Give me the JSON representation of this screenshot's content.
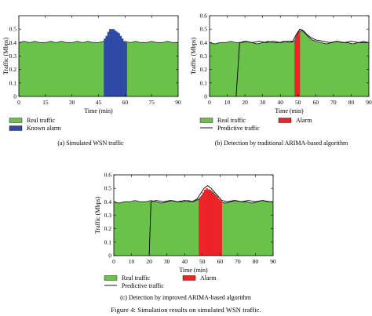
{
  "figure_caption": "Figure 4: Simulation results on simulated WSN traffic.",
  "colors": {
    "real": "#6ac24a",
    "known_alarm": "#2e4aa6",
    "alarm": "#ec2327",
    "predictive": "#000000",
    "frame": "#000000"
  },
  "chart_data": [
    {
      "id": "a",
      "type": "area",
      "caption": "(a)  Simulated WSN traffic",
      "xlabel": "Time (min)",
      "ylabel": "Traffic (Mbps)",
      "xlim": [
        0,
        90
      ],
      "ylim": [
        0,
        0.6
      ],
      "xticks": [
        "0",
        "15",
        "30",
        "45",
        "60",
        "75",
        "90"
      ],
      "yticks": [
        "0",
        "0.1",
        "0.2",
        "0.3",
        "0.4",
        "0.5"
      ],
      "series": [
        {
          "name": "Real traffic",
          "x": [
            0,
            3,
            6,
            9,
            12,
            15,
            18,
            21,
            24,
            27,
            30,
            33,
            36,
            39,
            42,
            45,
            48,
            50,
            52,
            54,
            56,
            58,
            60,
            63,
            66,
            69,
            72,
            75,
            78,
            81,
            84,
            87,
            90
          ],
          "y": [
            0.4,
            0.41,
            0.4,
            0.41,
            0.4,
            0.4,
            0.41,
            0.4,
            0.41,
            0.4,
            0.4,
            0.41,
            0.4,
            0.41,
            0.4,
            0.4,
            0.41,
            0.4,
            0.4,
            0.4,
            0.4,
            0.4,
            0.41,
            0.4,
            0.41,
            0.4,
            0.4,
            0.41,
            0.4,
            0.4,
            0.41,
            0.4,
            0.4
          ]
        },
        {
          "name": "Known alarm",
          "x": [
            48,
            49,
            50,
            51,
            52,
            53,
            54,
            55,
            56,
            57,
            58,
            59,
            60
          ],
          "y": [
            0.43,
            0.45,
            0.48,
            0.5,
            0.5,
            0.5,
            0.49,
            0.48,
            0.47,
            0.45,
            0.43,
            0.41,
            0.4
          ]
        }
      ]
    },
    {
      "id": "b",
      "type": "area",
      "caption": "(b)  Detection by traditional ARIMA-based algorithm",
      "xlabel": "Time (min)",
      "ylabel": "Traffic (Mbps)",
      "xlim": [
        0,
        90
      ],
      "ylim": [
        0,
        0.6
      ],
      "xticks": [
        "0",
        "10",
        "20",
        "30",
        "40",
        "50",
        "60",
        "70",
        "80",
        "90"
      ],
      "yticks": [
        "0",
        "0.1",
        "0.2",
        "0.3",
        "0.4",
        "0.5",
        "0.6"
      ],
      "series": [
        {
          "name": "Real traffic",
          "x": [
            0,
            3,
            6,
            9,
            12,
            15,
            18,
            21,
            24,
            27,
            30,
            33,
            36,
            39,
            42,
            45,
            48,
            50,
            52,
            54,
            56,
            58,
            60,
            63,
            66,
            69,
            72,
            75,
            78,
            81,
            84,
            87,
            90
          ],
          "y": [
            0.4,
            0.39,
            0.4,
            0.4,
            0.41,
            0.4,
            0.4,
            0.41,
            0.4,
            0.39,
            0.4,
            0.41,
            0.4,
            0.4,
            0.41,
            0.4,
            0.41,
            0.48,
            0.49,
            0.47,
            0.44,
            0.42,
            0.41,
            0.4,
            0.39,
            0.4,
            0.41,
            0.4,
            0.4,
            0.39,
            0.4,
            0.41,
            0.4
          ]
        },
        {
          "name": "Predictive traffic",
          "x": [
            15,
            17,
            20,
            24,
            28,
            32,
            36,
            40,
            44,
            47,
            49,
            51,
            53,
            55,
            57,
            60,
            64,
            68,
            72,
            76,
            80,
            84,
            88,
            90
          ],
          "y": [
            0.0,
            0.4,
            0.41,
            0.4,
            0.41,
            0.4,
            0.41,
            0.4,
            0.41,
            0.41,
            0.46,
            0.5,
            0.49,
            0.46,
            0.44,
            0.42,
            0.41,
            0.4,
            0.41,
            0.4,
            0.41,
            0.4,
            0.4,
            0.4
          ]
        },
        {
          "name": "Alarm",
          "x": [
            48,
            49,
            50
          ],
          "y": [
            0.42,
            0.46,
            0.48
          ]
        }
      ]
    },
    {
      "id": "c",
      "type": "area",
      "caption": "(c)  Detection by improved ARIMA-based algorithm",
      "xlabel": "Time (min)",
      "ylabel": "Traffic (Mbps)",
      "xlim": [
        0,
        90
      ],
      "ylim": [
        0,
        0.6
      ],
      "xticks": [
        "0",
        "10",
        "20",
        "30",
        "40",
        "50",
        "60",
        "70",
        "80",
        "90"
      ],
      "yticks": [
        "0",
        "0.1",
        "0.2",
        "0.3",
        "0.4",
        "0.5",
        "0.6"
      ],
      "series": [
        {
          "name": "Real traffic",
          "x": [
            0,
            3,
            6,
            9,
            12,
            15,
            18,
            21,
            24,
            27,
            30,
            33,
            36,
            39,
            42,
            45,
            48,
            50,
            52,
            54,
            56,
            58,
            60,
            63,
            66,
            69,
            72,
            75,
            78,
            81,
            84,
            87,
            90
          ],
          "y": [
            0.4,
            0.39,
            0.4,
            0.4,
            0.41,
            0.4,
            0.4,
            0.41,
            0.4,
            0.39,
            0.4,
            0.41,
            0.4,
            0.4,
            0.41,
            0.4,
            0.42,
            0.45,
            0.48,
            0.49,
            0.47,
            0.44,
            0.4,
            0.39,
            0.4,
            0.41,
            0.4,
            0.4,
            0.39,
            0.4,
            0.41,
            0.4,
            0.4
          ]
        },
        {
          "name": "Predictive traffic",
          "x": [
            20,
            21,
            24,
            28,
            32,
            36,
            40,
            44,
            47,
            49,
            51,
            53,
            55,
            57,
            59,
            61,
            64,
            68,
            72,
            76,
            80,
            84,
            88,
            90
          ],
          "y": [
            0.0,
            0.4,
            0.41,
            0.4,
            0.41,
            0.4,
            0.41,
            0.4,
            0.42,
            0.46,
            0.5,
            0.52,
            0.5,
            0.47,
            0.44,
            0.41,
            0.4,
            0.41,
            0.4,
            0.41,
            0.4,
            0.41,
            0.4,
            0.4
          ]
        },
        {
          "name": "Alarm",
          "x": [
            48,
            49,
            50,
            51,
            52,
            53,
            54,
            55,
            56,
            57,
            58,
            59,
            60
          ],
          "y": [
            0.42,
            0.44,
            0.47,
            0.49,
            0.5,
            0.49,
            0.48,
            0.47,
            0.46,
            0.45,
            0.44,
            0.42,
            0.41
          ]
        }
      ]
    }
  ]
}
